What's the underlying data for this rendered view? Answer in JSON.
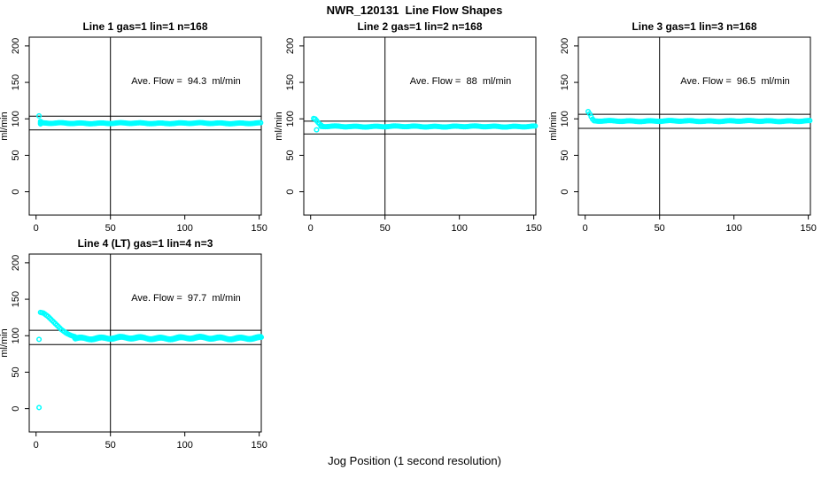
{
  "figure": {
    "title": "NWR_120131  Line Flow Shapes",
    "xlabel": "Jog Position (1 second resolution)",
    "background_color": "#ffffff",
    "point_color": "#00ffff",
    "axis_color": "#000000"
  },
  "chart_data": [
    {
      "type": "scatter",
      "title": "Line 1 gas=1 lin=1 n=168",
      "ylabel": "ml/min",
      "annotation": "Ave. Flow =  94.3  ml/min",
      "ave_flow_ml_min": 94.3,
      "n_points": 168,
      "x_ticks": [
        0,
        50,
        100,
        150
      ],
      "y_ticks": [
        0,
        50,
        100,
        150,
        200
      ],
      "xlim": [
        -4.6,
        151.4
      ],
      "ylim": [
        -32,
        212
      ],
      "vline_x": 50,
      "ref_lines_y": [
        103.7,
        84.9
      ],
      "points": [
        [
          2,
          104
        ],
        [
          3,
          96.5
        ],
        [
          3,
          93
        ],
        [
          4,
          95
        ]
      ],
      "band": {
        "x_start": 3,
        "x_end": 151,
        "y": 94,
        "wobble": 0.5
      }
    },
    {
      "type": "scatter",
      "title": "Line 2 gas=1 lin=2 n=168",
      "ylabel": "ml/min",
      "annotation": "Ave. Flow =  88  ml/min",
      "ave_flow_ml_min": 88,
      "n_points": 168,
      "x_ticks": [
        0,
        50,
        100,
        150
      ],
      "y_ticks": [
        0,
        50,
        100,
        150,
        200
      ],
      "xlim": [
        -4.6,
        151.4
      ],
      "ylim": [
        -32,
        212
      ],
      "vline_x": 50,
      "ref_lines_y": [
        96.8,
        79.2
      ],
      "points": [
        [
          2,
          100.5
        ],
        [
          3,
          100
        ],
        [
          4,
          97.5
        ],
        [
          4,
          85
        ],
        [
          5,
          95
        ],
        [
          6,
          93
        ],
        [
          7,
          91.5
        ]
      ],
      "band": {
        "x_start": 7,
        "x_end": 151,
        "y": 89.5,
        "wobble": 0.5
      }
    },
    {
      "type": "scatter",
      "title": "Line 3 gas=1 lin=3 n=168",
      "ylabel": "ml/min",
      "annotation": "Ave. Flow =  96.5  ml/min",
      "ave_flow_ml_min": 96.5,
      "n_points": 168,
      "x_ticks": [
        0,
        50,
        100,
        150
      ],
      "y_ticks": [
        0,
        50,
        100,
        150,
        200
      ],
      "xlim": [
        -4.6,
        151.4
      ],
      "ylim": [
        -32,
        212
      ],
      "vline_x": 50,
      "ref_lines_y": [
        106.2,
        86.9
      ],
      "points": [
        [
          2,
          110
        ],
        [
          3,
          107
        ],
        [
          4,
          103
        ],
        [
          5,
          99.5
        ]
      ],
      "band": {
        "x_start": 6,
        "x_end": 151,
        "y": 97,
        "wobble": 0.5
      }
    },
    {
      "type": "scatter",
      "title": "Line 4 (LT) gas=1 lin=4 n=3",
      "ylabel": "ml/min",
      "annotation": "Ave. Flow =  97.7  ml/min",
      "ave_flow_ml_min": 97.7,
      "n_points": 3,
      "x_ticks": [
        0,
        50,
        100,
        150
      ],
      "y_ticks": [
        0,
        50,
        100,
        150,
        200
      ],
      "xlim": [
        -4.6,
        151.4
      ],
      "ylim": [
        -32,
        212
      ],
      "vline_x": 50,
      "ref_lines_y": [
        107.5,
        87.9
      ],
      "points": [
        [
          2,
          1.5
        ],
        [
          2,
          95
        ],
        [
          3,
          132
        ],
        [
          4,
          131.5
        ],
        [
          5,
          131
        ],
        [
          6,
          129.5
        ],
        [
          7,
          128
        ],
        [
          8,
          126.5
        ],
        [
          9,
          124.5
        ],
        [
          10,
          122.5
        ],
        [
          11,
          120.5
        ],
        [
          12,
          118.5
        ],
        [
          13,
          116.5
        ],
        [
          14,
          114.5
        ],
        [
          15,
          112.5
        ],
        [
          16,
          110.5
        ],
        [
          17,
          108.5
        ],
        [
          18,
          107
        ],
        [
          19,
          105.5
        ],
        [
          20,
          104
        ],
        [
          21,
          102.8
        ],
        [
          22,
          101.8
        ],
        [
          23,
          100.8
        ],
        [
          24,
          100
        ],
        [
          25,
          99.3
        ],
        [
          26,
          98.7
        ]
      ],
      "band": {
        "x_start": 26,
        "x_end": 151,
        "y": 97.2,
        "wobble": 1.2,
        "double": true
      }
    }
  ]
}
